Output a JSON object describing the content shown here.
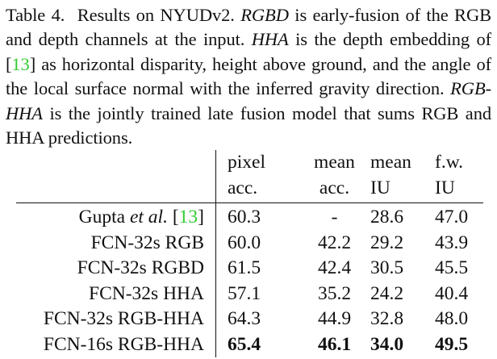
{
  "caption": {
    "label": "Table 4.",
    "text_part1": "Results on NYUDv2.",
    "rgbd_term": "RGBD",
    "text_part2": "is early-fusion of the RGB and depth channels at the input.",
    "hha_term": "HHA",
    "text_part3": "is the depth embedding of",
    "ref_open": "[",
    "ref_num": "13",
    "ref_close": "]",
    "text_part4": "as horizontal disparity, height above ground, and the angle of the local surface normal with the inferred gravity direction.",
    "rgbhha_term": "RGB-HHA",
    "text_part5": "is the jointly trained late fusion model that sums RGB and HHA predictions."
  },
  "table": {
    "headers_line1": [
      "pixel",
      "mean",
      "mean",
      "f.w."
    ],
    "headers_line2": [
      "acc.",
      "acc.",
      "IU",
      "IU"
    ],
    "gupta_row": {
      "name_prefix": "Gupta",
      "name_italic": "et al.",
      "ref_open": "[",
      "ref_num": "13",
      "ref_close": "]",
      "values": [
        "60.3",
        "-",
        "28.6",
        "47.0"
      ]
    },
    "rows": [
      {
        "method": "FCN-32s RGB",
        "values": [
          "60.0",
          "42.2",
          "29.2",
          "43.9"
        ]
      },
      {
        "method": "FCN-32s RGBD",
        "values": [
          "61.5",
          "42.4",
          "30.5",
          "45.5"
        ]
      },
      {
        "method": "FCN-32s HHA",
        "values": [
          "57.1",
          "35.2",
          "24.2",
          "40.4"
        ]
      },
      {
        "method": "FCN-32s RGB-HHA",
        "values": [
          "64.3",
          "44.9",
          "32.8",
          "48.0"
        ]
      },
      {
        "method": "FCN-16s RGB-HHA",
        "values": [
          "65.4",
          "46.1",
          "34.0",
          "49.5"
        ],
        "bold": true
      }
    ]
  },
  "colors": {
    "text": "#111111",
    "reference_link": "#33cc33",
    "background": "#ffffff"
  }
}
